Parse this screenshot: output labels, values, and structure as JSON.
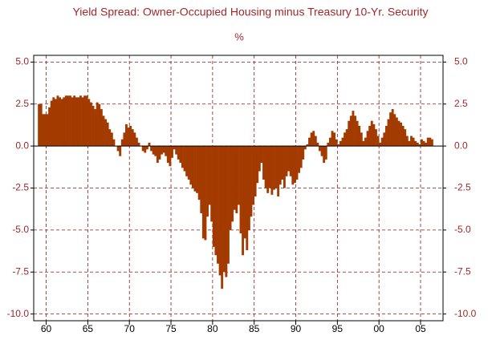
{
  "chart_data": {
    "type": "bar",
    "title": "Yield Spread: Owner-Occupied Housing minus Treasury 10-Yr. Security",
    "subtitle": "%",
    "color": "#a33a00",
    "grid": true,
    "xlim": [
      1958.5,
      2007.7
    ],
    "ylim": [
      -10.4,
      5.4
    ],
    "xticks": [
      {
        "value": 1960,
        "label": "60"
      },
      {
        "value": 1965,
        "label": "65"
      },
      {
        "value": 1970,
        "label": "70"
      },
      {
        "value": 1975,
        "label": "75"
      },
      {
        "value": 1980,
        "label": "80"
      },
      {
        "value": 1985,
        "label": "85"
      },
      {
        "value": 1990,
        "label": "90"
      },
      {
        "value": 1995,
        "label": "95"
      },
      {
        "value": 2000,
        "label": "00"
      },
      {
        "value": 2005,
        "label": "05"
      }
    ],
    "yticks": [
      {
        "value": 5,
        "label": "5.0"
      },
      2.5,
      {
        "value": 0,
        "label": "0.0"
      },
      -2.5,
      {
        "value": -5,
        "label": "-5.0"
      },
      -7.5,
      {
        "value": -10,
        "label": "-10.0"
      }
    ],
    "x": [
      1959,
      1959.25,
      1959.5,
      1959.75,
      1960,
      1960.25,
      1960.5,
      1960.75,
      1961,
      1961.25,
      1961.5,
      1961.75,
      1962,
      1962.25,
      1962.5,
      1962.75,
      1963,
      1963.25,
      1963.5,
      1963.75,
      1964,
      1964.25,
      1964.5,
      1964.75,
      1965,
      1965.25,
      1965.5,
      1965.75,
      1966,
      1966.25,
      1966.5,
      1966.75,
      1967,
      1967.25,
      1967.5,
      1967.75,
      1968,
      1968.25,
      1968.5,
      1968.75,
      1969,
      1969.25,
      1969.5,
      1969.75,
      1970,
      1970.25,
      1970.5,
      1970.75,
      1971,
      1971.25,
      1971.5,
      1971.75,
      1972,
      1972.25,
      1972.5,
      1972.75,
      1973,
      1973.25,
      1973.5,
      1973.75,
      1974,
      1974.25,
      1974.5,
      1974.75,
      1975,
      1975.25,
      1975.5,
      1975.75,
      1976,
      1976.25,
      1976.5,
      1976.75,
      1977,
      1977.25,
      1977.5,
      1977.75,
      1978,
      1978.25,
      1978.5,
      1978.75,
      1979,
      1979.25,
      1979.5,
      1979.75,
      1980,
      1980.25,
      1980.5,
      1980.75,
      1981,
      1981.25,
      1981.5,
      1981.75,
      1982,
      1982.25,
      1982.5,
      1982.75,
      1983,
      1983.25,
      1983.5,
      1983.75,
      1984,
      1984.25,
      1984.5,
      1984.75,
      1985,
      1985.25,
      1985.5,
      1985.75,
      1986,
      1986.25,
      1986.5,
      1986.75,
      1987,
      1987.25,
      1987.5,
      1987.75,
      1988,
      1988.25,
      1988.5,
      1988.75,
      1989,
      1989.25,
      1989.5,
      1989.75,
      1990,
      1990.25,
      1990.5,
      1990.75,
      1991,
      1991.25,
      1991.5,
      1991.75,
      1992,
      1992.25,
      1992.5,
      1992.75,
      1993,
      1993.25,
      1993.5,
      1993.75,
      1994,
      1994.25,
      1994.5,
      1994.75,
      1995,
      1995.25,
      1995.5,
      1995.75,
      1996,
      1996.25,
      1996.5,
      1996.75,
      1997,
      1997.25,
      1997.5,
      1997.75,
      1998,
      1998.25,
      1998.5,
      1998.75,
      1999,
      1999.25,
      1999.5,
      1999.75,
      2000,
      2000.25,
      2000.5,
      2000.75,
      2001,
      2001.25,
      2001.5,
      2001.75,
      2002,
      2002.25,
      2002.5,
      2002.75,
      2003,
      2003.25,
      2003.5,
      2003.75,
      2004,
      2004.25,
      2004.5,
      2004.75,
      2005,
      2005.25,
      2005.5,
      2005.75,
      2006,
      2006.25
    ],
    "values": [
      2.5,
      2.5,
      1.9,
      1.9,
      1.9,
      2.3,
      2.7,
      2.9,
      2.8,
      3.0,
      2.9,
      2.8,
      2.9,
      3.0,
      3.0,
      3.0,
      2.9,
      3.0,
      2.9,
      2.9,
      3.0,
      2.9,
      3.0,
      3.0,
      2.8,
      2.6,
      2.4,
      2.2,
      2.6,
      2.5,
      2.2,
      1.8,
      1.6,
      1.4,
      1.0,
      0.8,
      0.4,
      0.0,
      -0.3,
      -0.6,
      0.4,
      0.8,
      1.3,
      1.1,
      1.2,
      1.0,
      0.8,
      0.5,
      0.2,
      0.0,
      -0.3,
      -0.4,
      -0.2,
      0.2,
      -0.3,
      -0.5,
      -0.6,
      -1.0,
      -0.8,
      -0.5,
      -0.4,
      -0.6,
      -1.0,
      -1.2,
      -0.7,
      -0.2,
      -0.5,
      -0.8,
      -1.0,
      -1.3,
      -1.5,
      -1.8,
      -2.0,
      -2.3,
      -2.5,
      -2.7,
      -2.8,
      -3.2,
      -4.0,
      -5.5,
      -5.6,
      -4.2,
      -3.5,
      -4.5,
      -6.0,
      -6.5,
      -7.0,
      -7.7,
      -8.5,
      -7.5,
      -7.8,
      -7.0,
      -5.0,
      -4.5,
      -3.8,
      -4.0,
      -3.5,
      -5.2,
      -6.5,
      -5.5,
      -6.2,
      -5.0,
      -4.2,
      -3.5,
      -3.0,
      -2.2,
      -1.5,
      -1.0,
      -2.0,
      -2.5,
      -2.8,
      -2.5,
      -2.9,
      -2.6,
      -2.5,
      -3.0,
      -2.3,
      -2.0,
      -2.5,
      -1.8,
      -1.5,
      -1.8,
      -2.3,
      -2.2,
      -2.0,
      -1.6,
      -1.3,
      -0.8,
      -0.2,
      0.1,
      0.5,
      0.8,
      0.9,
      0.6,
      0.2,
      -0.3,
      -0.6,
      -1.0,
      -0.8,
      0.2,
      0.5,
      0.9,
      0.8,
      0.4,
      0.1,
      0.3,
      0.5,
      0.8,
      1.0,
      1.5,
      1.8,
      2.1,
      1.8,
      1.5,
      1.2,
      0.8,
      0.3,
      0.5,
      0.9,
      1.2,
      1.5,
      1.3,
      1.0,
      0.6,
      0.2,
      0.5,
      0.8,
      1.2,
      1.6,
      2.0,
      2.2,
      1.9,
      1.7,
      1.5,
      1.4,
      1.2,
      1.0,
      0.6,
      0.3,
      0.6,
      0.5,
      0.3,
      0.2,
      0.1,
      0.4,
      0.3,
      0.2,
      0.5,
      0.5,
      0.4
    ]
  }
}
